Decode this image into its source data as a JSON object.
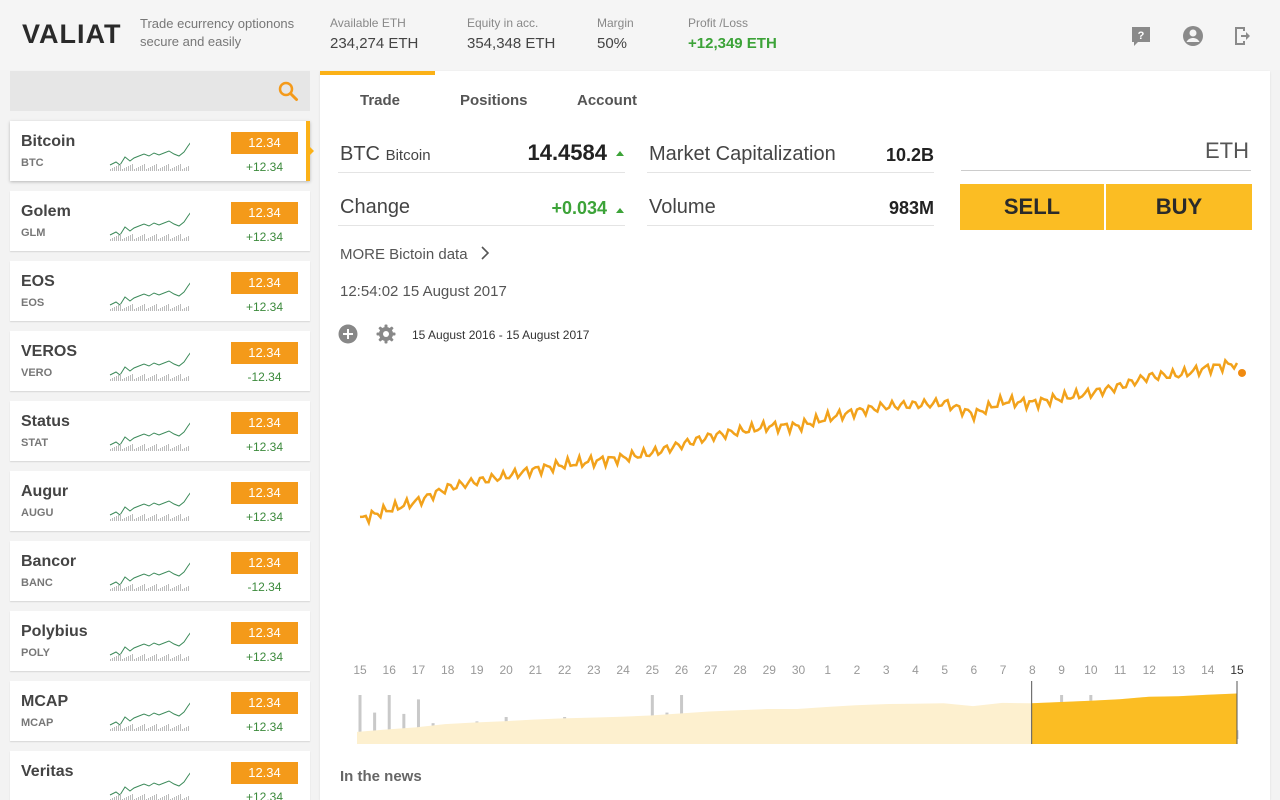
{
  "header": {
    "logo": "VALIAT",
    "tagline": "Trade ecurrency optionons secure and easily",
    "stats": [
      {
        "label": "Available ETH",
        "value": "234,274 ETH"
      },
      {
        "label": "Equity in acc.",
        "value": "354,348 ETH"
      },
      {
        "label": "Margin",
        "value": "50%"
      },
      {
        "label": "Profit /Loss",
        "value": "+12,349 ETH"
      }
    ],
    "icons": [
      "help-icon",
      "account-icon",
      "logout-icon"
    ]
  },
  "sidebar": {
    "search": {
      "placeholder": "",
      "icon": "search-icon"
    },
    "coins": [
      {
        "name": "Bitcoin",
        "symbol": "BTC",
        "price": "12.34",
        "change": "+12.34",
        "active": true
      },
      {
        "name": "Golem",
        "symbol": "GLM",
        "price": "12.34",
        "change": "+12.34"
      },
      {
        "name": "EOS",
        "symbol": "EOS",
        "price": "12.34",
        "change": "+12.34"
      },
      {
        "name": "VEROS",
        "symbol": "VERO",
        "price": "12.34",
        "change": "-12.34"
      },
      {
        "name": "Status",
        "symbol": "STAT",
        "price": "12.34",
        "change": "+12.34"
      },
      {
        "name": "Augur",
        "symbol": "AUGU",
        "price": "12.34",
        "change": "+12.34"
      },
      {
        "name": "Bancor",
        "symbol": "BANC",
        "price": "12.34",
        "change": "-12.34"
      },
      {
        "name": "Polybius",
        "symbol": "POLY",
        "price": "12.34",
        "change": "+12.34"
      },
      {
        "name": "MCAP",
        "symbol": "MCAP",
        "price": "12.34",
        "change": "+12.34"
      },
      {
        "name": "Veritas",
        "symbol": "",
        "price": "12.34",
        "change": "+12.34"
      }
    ]
  },
  "main": {
    "tabs": [
      "Trade",
      "Positions",
      "Account"
    ],
    "active_tab": "Trade",
    "quote": {
      "symbol": "BTC",
      "name": "Bitcoin",
      "price": "14.4584",
      "change_label": "Change",
      "change": "+0.034",
      "market_cap_label": "Market Capitalization",
      "market_cap": "10.2B",
      "volume_label": "Volume",
      "volume": "983M"
    },
    "order": {
      "currency": "ETH",
      "sell_label": "SELL",
      "buy_label": "BUY"
    },
    "more_link": "MORE Bictoin data",
    "timestamp": "12:54:02  15 August 2017",
    "range": "15 August 2016  -  15 August 2017",
    "news_heading": "In the news"
  },
  "colors": {
    "accent": "#fbb117",
    "price_badge": "#f49a1a",
    "up": "#3ca338",
    "line": "#f2a21b",
    "volume": "#c9c9c9"
  },
  "chart_data": {
    "type": "line",
    "title": "",
    "x_tick_labels": [
      "15",
      "16",
      "17",
      "18",
      "19",
      "20",
      "21",
      "22",
      "23",
      "24",
      "25",
      "26",
      "27",
      "28",
      "29",
      "30",
      "1",
      "2",
      "3",
      "4",
      "5",
      "6",
      "7",
      "8",
      "9",
      "10",
      "11",
      "12",
      "13",
      "14",
      "15"
    ],
    "highlighted_tick": 30,
    "price_series": [
      4.0,
      4.6,
      5.1,
      5.9,
      6.3,
      6.6,
      7.0,
      7.3,
      7.5,
      7.7,
      8.0,
      8.5,
      9.0,
      9.3,
      9.6,
      9.6,
      10.1,
      10.5,
      10.8,
      10.9,
      11.0,
      10.3,
      11.1,
      11.0,
      11.3,
      11.6,
      12.0,
      12.6,
      12.7,
      13.1,
      13.4
    ],
    "volume_series": [
      10,
      10,
      9,
      3,
      4,
      5,
      3,
      5,
      3,
      4,
      10,
      10,
      4,
      3,
      3,
      4,
      2,
      2,
      2,
      3,
      2,
      3,
      3,
      4,
      10,
      10,
      4,
      3,
      3,
      3,
      2
    ],
    "navigator": {
      "selected_from_index": 23,
      "selected_to_index": 30
    }
  }
}
